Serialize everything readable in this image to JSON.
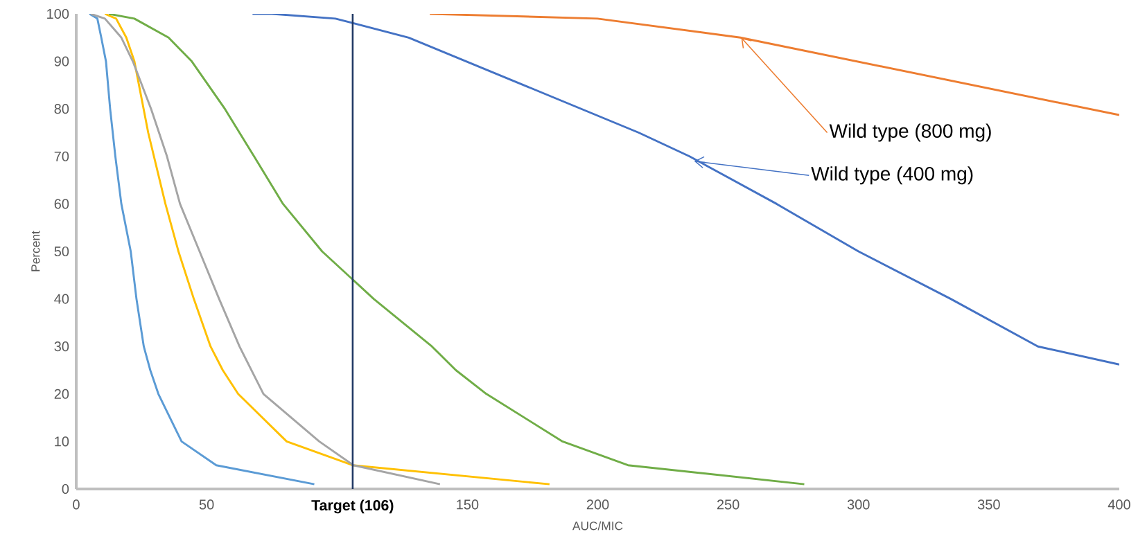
{
  "chart_data": {
    "type": "line",
    "xlabel": "AUC/MIC",
    "ylabel": "Percent",
    "xlim": [
      0,
      400
    ],
    "ylim": [
      0,
      100
    ],
    "xticks": [
      0,
      50,
      150,
      200,
      250,
      300,
      350,
      400
    ],
    "yticks": [
      0,
      10,
      20,
      30,
      40,
      50,
      60,
      70,
      80,
      90,
      100
    ],
    "grid": false,
    "marker": "none",
    "line_style": "solid",
    "series": [
      {
        "color": "#5b9bd5",
        "x": [
          5.1,
          8.1,
          9.6,
          11.4,
          13,
          15,
          17.3,
          20.9,
          23.1,
          25.9,
          28.4,
          31.5,
          40.4,
          53.7,
          91.3
        ],
        "values": [
          100,
          99,
          95,
          90,
          80,
          70,
          60,
          50,
          40,
          30,
          25,
          20,
          10,
          5,
          1
        ]
      },
      {
        "color": "#ffc000",
        "x": [
          11,
          15.3,
          19.2,
          22.3,
          27.6,
          34.2,
          39.2,
          45.1,
          51.5,
          56.2,
          62.1,
          80.7,
          106,
          181.5
        ],
        "values": [
          100,
          99,
          95,
          90,
          75,
          60,
          50,
          40,
          30,
          25,
          20,
          10,
          5,
          1
        ]
      },
      {
        "color": "#a5a5a5",
        "x": [
          5.6,
          11,
          17.3,
          21.7,
          28.7,
          34.8,
          39.8,
          47.3,
          54.8,
          62.6,
          71.8,
          93.2,
          106.3,
          139.5
        ],
        "values": [
          100,
          99,
          95,
          90,
          80,
          70,
          60,
          50,
          40,
          30,
          20,
          10,
          5,
          1
        ]
      },
      {
        "color": "#70ad47",
        "x": [
          12.5,
          22.3,
          35.4,
          44.3,
          57,
          62.6,
          68.2,
          79.3,
          94.3,
          114.1,
          136.4,
          145.6,
          157.3,
          186.5,
          211.6,
          279.2
        ],
        "values": [
          100,
          99,
          95,
          90,
          80,
          75,
          70,
          60,
          50,
          40,
          30,
          25,
          20,
          10,
          5,
          1
        ]
      },
      {
        "color": "#4472c4",
        "x": [
          67.6,
          75,
          99.4,
          127.5,
          215.7,
          235.2,
          268.6,
          300,
          335.4,
          368.8,
          400
        ],
        "values": [
          100,
          100,
          99,
          95,
          75,
          70,
          60,
          50,
          40,
          30,
          26.2
        ]
      },
      {
        "color": "#ed7d31",
        "x": [
          135.6,
          199.9,
          254.7,
          400
        ],
        "values": [
          100,
          99,
          95,
          78.7
        ]
      }
    ],
    "ref_lines": [
      {
        "axis": "x",
        "value": 106,
        "label": "Target (106)",
        "color": "#203864",
        "line_style": "solid"
      }
    ],
    "annotations": [
      {
        "text": "Wild type (800 mg)",
        "x": 255,
        "y": 95
      },
      {
        "text": "Wild type (400 mg)",
        "x": 237,
        "y": 69
      }
    ]
  }
}
